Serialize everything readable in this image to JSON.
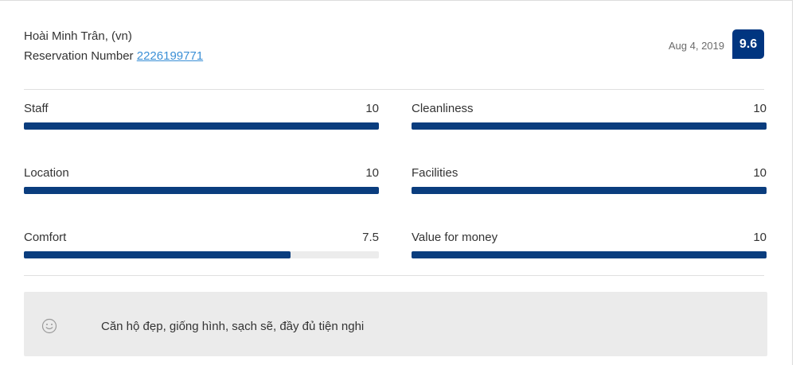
{
  "review": {
    "guest_name": "Hoài Minh Trân, (vn)",
    "reservation_label": "Reservation Number",
    "reservation_number": "2226199771",
    "date": "Aug 4, 2019",
    "overall_score": "9.6"
  },
  "ratings": [
    {
      "label": "Staff",
      "value": "10",
      "fraction": 1.0
    },
    {
      "label": "Cleanliness",
      "value": "10",
      "fraction": 1.0
    },
    {
      "label": "Location",
      "value": "10",
      "fraction": 1.0
    },
    {
      "label": "Facilities",
      "value": "10",
      "fraction": 1.0
    },
    {
      "label": "Comfort",
      "value": "7.5",
      "fraction": 0.75
    },
    {
      "label": "Value for money",
      "value": "10",
      "fraction": 1.0
    }
  ],
  "comment": {
    "icon": "smile-icon",
    "text": "Căn hộ đẹp, giống hình, sạch sẽ, đầy đủ tiện nghi"
  },
  "colors": {
    "accent": "#003580",
    "bar_fill": "#0a3d7e",
    "link": "#3a8fd6"
  }
}
